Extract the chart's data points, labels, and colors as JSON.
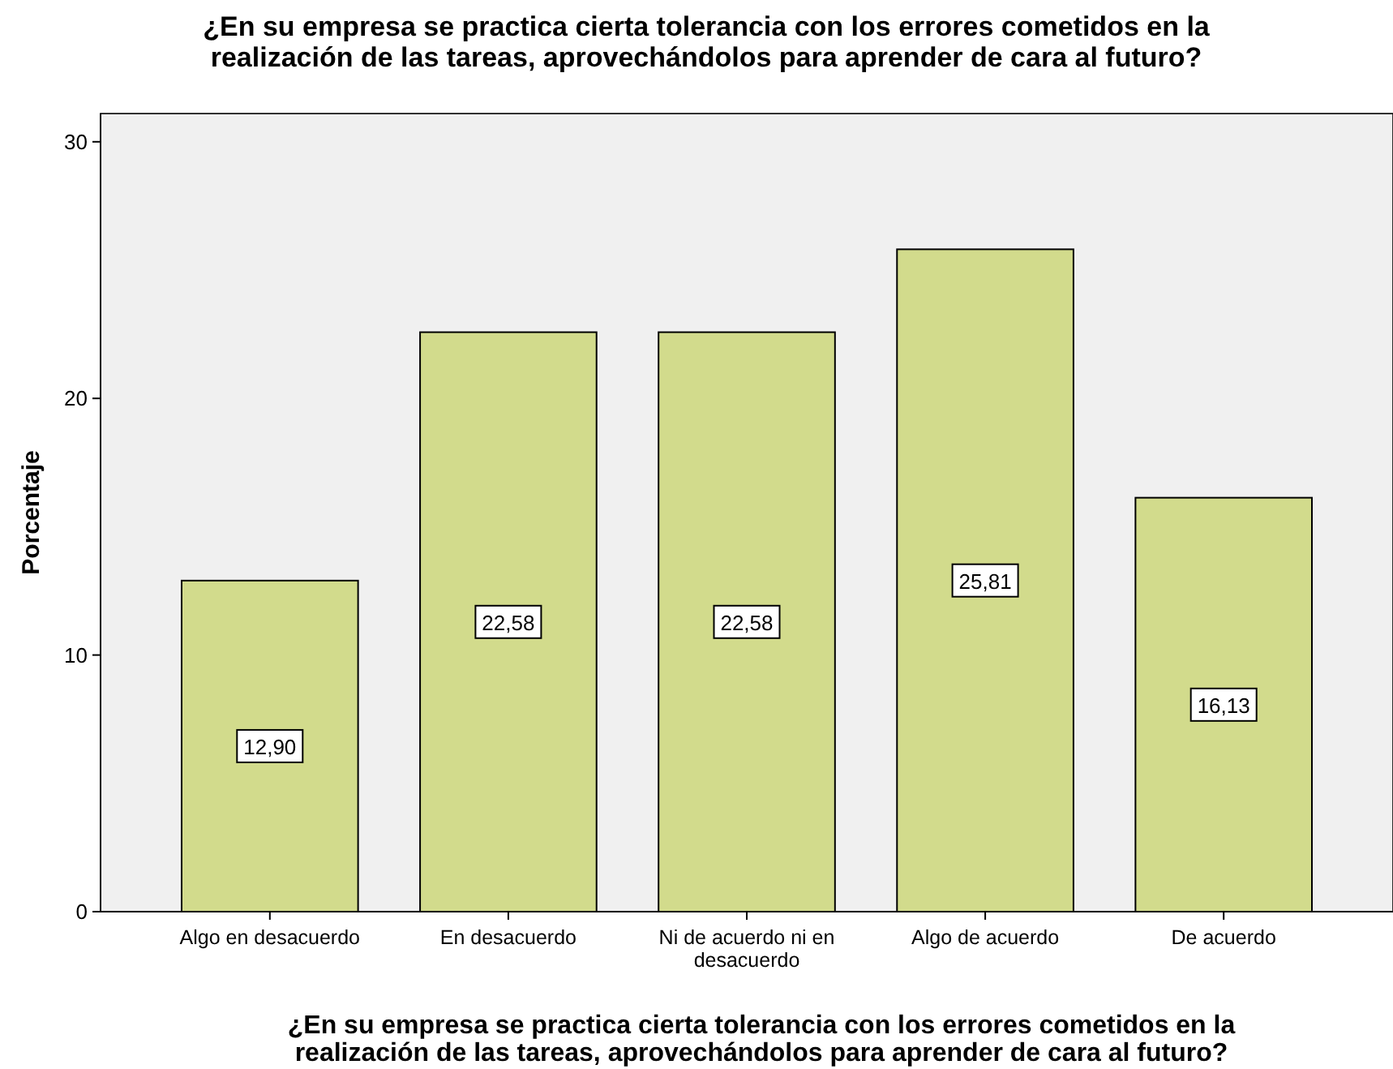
{
  "chart_data": {
    "type": "bar",
    "title": "¿En su empresa se practica cierta tolerancia con los errores cometidos en la\nrealización de las tareas, aprovechándolos para aprender de cara al futuro?",
    "xlabel": "¿En su empresa se practica cierta tolerancia con los errores cometidos en la\nrealización de las tareas, aprovechándolos para aprender de cara al futuro?",
    "ylabel": "Porcentaje",
    "categories": [
      "Algo en desacuerdo",
      "En desacuerdo",
      "Ni de acuerdo ni en desacuerdo",
      "Algo de acuerdo",
      "De acuerdo"
    ],
    "values": [
      12.9,
      22.58,
      22.58,
      25.81,
      16.13
    ],
    "value_labels": [
      "12,90",
      "22,58",
      "22,58",
      "25,81",
      "16,13"
    ],
    "color": "#d2db8c",
    "ylim": [
      0,
      31.1
    ],
    "yticks": [
      0,
      10,
      20,
      30
    ],
    "grid": false
  }
}
